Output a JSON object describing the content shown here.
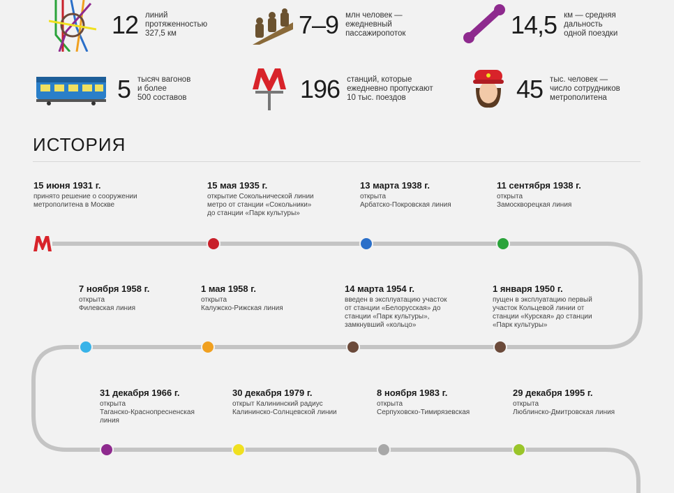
{
  "stats": [
    {
      "icon": "metro-map-icon",
      "value": "12",
      "text": "линий\nпротяженностью\n327,5 км"
    },
    {
      "icon": "passengers-escalator-icon",
      "value": "7–9",
      "text": "млн человек —\nежедневный\nпассажиропоток"
    },
    {
      "icon": "distance-bar-icon",
      "value": "14,5",
      "text": "км — средняя\nдальность\nодной поездки"
    },
    {
      "icon": "train-car-icon",
      "value": "5",
      "text": "тысяч вагонов\nи более\n500 составов"
    },
    {
      "icon": "metro-sign-icon",
      "value": "196",
      "text": "станций, которые\nежедневно пропускают\n10 тыс. поездов"
    },
    {
      "icon": "staff-woman-icon",
      "value": "45",
      "text": "тыс. человек —\nчисло сотрудников\nметрополитена"
    }
  ],
  "history": {
    "title": "ИСТОРИЯ",
    "start_logo": "М",
    "events": [
      {
        "date": "15 июня 1931 г.",
        "text": "принято решение о сооружении\nметрополитена в Москве",
        "color": ""
      },
      {
        "date": "15 мая 1935 г.",
        "text": "открытие Сокольнической линии\nметро от станции «Сокольники»\nдо станции «Парк культуры»",
        "color": "#c8202a"
      },
      {
        "date": "13 марта 1938 г.",
        "text": "открыта\nАрбатско-Покровская линия",
        "color": "#2a6fc9"
      },
      {
        "date": "11 сентября 1938 г.",
        "text": "открыта\nЗамоскворецкая линия",
        "color": "#2aa33a"
      },
      {
        "date": "1 января 1950 г.",
        "text": "пущен в эксплуатацию первый\nучасток Кольцевой линии от\nстанции «Курская» до станции\n«Парк культуры»",
        "color": "#6b4a3a"
      },
      {
        "date": "14 марта 1954 г.",
        "text": "введен в эксплуатацию участок\nот станции «Белорусская» до\nстанции «Парк культуры»,\nзамкнувший «кольцо»",
        "color": "#6b4a3a"
      },
      {
        "date": "1 мая 1958 г.",
        "text": "открыта\nКалужско-Рижская линия",
        "color": "#f0a020"
      },
      {
        "date": "7 ноября 1958 г.",
        "text": "открыта\nФилевская линия",
        "color": "#38b3e8"
      },
      {
        "date": "31 декабря 1966 г.",
        "text": "открыта\nТаганско-Краснопресненская\nлиния",
        "color": "#8e2a8e"
      },
      {
        "date": "30 декабря 1979 г.",
        "text": "открыт Калининский радиус\nКалининско-Солнцевской линии",
        "color": "#f0e020"
      },
      {
        "date": "8 ноября 1983 г.",
        "text": "открыта\nСерпуховско-Тимирязевская",
        "color": "#a8a8a8"
      },
      {
        "date": "29 декабря 1995 г.",
        "text": "открыта\nЛюблинско-Дмитровская линия",
        "color": "#9ac52a"
      }
    ]
  },
  "colors": {
    "track": "#c4c4c4",
    "metro_red": "#d8232a",
    "purple": "#8e2a8e"
  }
}
